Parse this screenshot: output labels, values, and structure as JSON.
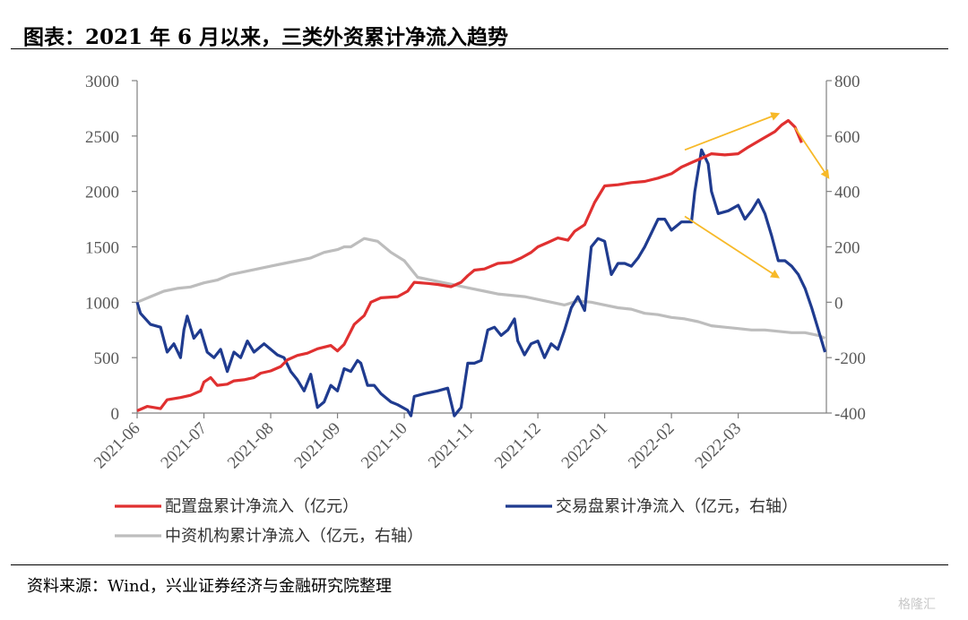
{
  "header": {
    "title": "图表：2021 年 6 月以来，三类外资累计净流入趋势"
  },
  "footer": {
    "source": "资料来源：Wind，兴业证券经济与金融研究院整理",
    "watermark": "格隆汇"
  },
  "colors": {
    "red": "#e03030",
    "blue": "#1f3b8f",
    "gray": "#bdbdbd",
    "arrow": "#f7b928",
    "axis": "#808080"
  },
  "chart_data": {
    "type": "line",
    "title": "2021年6月以来，三类外资累计净流入趋势",
    "x_categories": [
      "2021-06",
      "2021-07",
      "2021-08",
      "2021-09",
      "2021-10",
      "2021-11",
      "2021-12",
      "2022-01",
      "2022-02",
      "2022-03"
    ],
    "x_range": [
      0,
      9.95
    ],
    "y_left": {
      "min": 0,
      "max": 3000,
      "ticks": [
        0,
        500,
        1000,
        1500,
        2000,
        2500,
        3000
      ]
    },
    "y_right": {
      "min": -400,
      "max": 800,
      "ticks": [
        -400,
        -200,
        0,
        200,
        400,
        600,
        800
      ]
    },
    "series": [
      {
        "name": "配置盘累计净流入（亿元）",
        "axis": "left",
        "color": "#e03030",
        "points": [
          [
            0.0,
            20
          ],
          [
            0.15,
            60
          ],
          [
            0.35,
            40
          ],
          [
            0.45,
            120
          ],
          [
            0.65,
            140
          ],
          [
            0.8,
            160
          ],
          [
            0.95,
            200
          ],
          [
            1.0,
            280
          ],
          [
            1.1,
            320
          ],
          [
            1.2,
            250
          ],
          [
            1.35,
            260
          ],
          [
            1.45,
            290
          ],
          [
            1.6,
            300
          ],
          [
            1.75,
            320
          ],
          [
            1.85,
            360
          ],
          [
            2.0,
            380
          ],
          [
            2.15,
            420
          ],
          [
            2.25,
            480
          ],
          [
            2.4,
            520
          ],
          [
            2.55,
            540
          ],
          [
            2.7,
            580
          ],
          [
            2.9,
            610
          ],
          [
            3.0,
            560
          ],
          [
            3.1,
            620
          ],
          [
            3.25,
            800
          ],
          [
            3.4,
            880
          ],
          [
            3.5,
            1000
          ],
          [
            3.65,
            1040
          ],
          [
            3.9,
            1050
          ],
          [
            4.05,
            1100
          ],
          [
            4.15,
            1180
          ],
          [
            4.35,
            1170
          ],
          [
            4.5,
            1160
          ],
          [
            4.7,
            1140
          ],
          [
            4.85,
            1180
          ],
          [
            4.95,
            1240
          ],
          [
            5.05,
            1290
          ],
          [
            5.2,
            1300
          ],
          [
            5.4,
            1350
          ],
          [
            5.6,
            1360
          ],
          [
            5.75,
            1400
          ],
          [
            5.9,
            1450
          ],
          [
            6.0,
            1500
          ],
          [
            6.15,
            1540
          ],
          [
            6.3,
            1580
          ],
          [
            6.45,
            1560
          ],
          [
            6.55,
            1640
          ],
          [
            6.7,
            1700
          ],
          [
            6.85,
            1900
          ],
          [
            7.0,
            2050
          ],
          [
            7.2,
            2060
          ],
          [
            7.4,
            2080
          ],
          [
            7.6,
            2090
          ],
          [
            7.8,
            2120
          ],
          [
            8.0,
            2160
          ],
          [
            8.15,
            2220
          ],
          [
            8.3,
            2260
          ],
          [
            8.45,
            2300
          ],
          [
            8.6,
            2340
          ],
          [
            8.8,
            2330
          ],
          [
            9.0,
            2340
          ],
          [
            9.15,
            2400
          ],
          [
            9.35,
            2470
          ],
          [
            9.55,
            2540
          ],
          [
            9.65,
            2600
          ],
          [
            9.75,
            2640
          ],
          [
            9.85,
            2580
          ],
          [
            9.95,
            2440
          ]
        ]
      },
      {
        "name": "交易盘累计净流入（亿元，右轴）",
        "axis": "right",
        "color": "#1f3b8f",
        "points": [
          [
            0.0,
            0
          ],
          [
            0.05,
            -40
          ],
          [
            0.2,
            -80
          ],
          [
            0.35,
            -90
          ],
          [
            0.45,
            -180
          ],
          [
            0.55,
            -150
          ],
          [
            0.65,
            -200
          ],
          [
            0.7,
            -100
          ],
          [
            0.75,
            -50
          ],
          [
            0.85,
            -130
          ],
          [
            0.95,
            -100
          ],
          [
            1.05,
            -180
          ],
          [
            1.15,
            -200
          ],
          [
            1.25,
            -170
          ],
          [
            1.35,
            -250
          ],
          [
            1.45,
            -180
          ],
          [
            1.55,
            -200
          ],
          [
            1.65,
            -140
          ],
          [
            1.75,
            -180
          ],
          [
            1.9,
            -150
          ],
          [
            2.0,
            -170
          ],
          [
            2.1,
            -190
          ],
          [
            2.2,
            -200
          ],
          [
            2.3,
            -250
          ],
          [
            2.4,
            -280
          ],
          [
            2.5,
            -320
          ],
          [
            2.6,
            -260
          ],
          [
            2.7,
            -380
          ],
          [
            2.8,
            -360
          ],
          [
            2.9,
            -300
          ],
          [
            3.0,
            -320
          ],
          [
            3.1,
            -240
          ],
          [
            3.2,
            -250
          ],
          [
            3.3,
            -210
          ],
          [
            3.35,
            -220
          ],
          [
            3.45,
            -300
          ],
          [
            3.55,
            -300
          ],
          [
            3.65,
            -330
          ],
          [
            3.8,
            -360
          ],
          [
            3.9,
            -370
          ],
          [
            4.05,
            -390
          ],
          [
            4.1,
            -410
          ],
          [
            4.15,
            -340
          ],
          [
            4.3,
            -330
          ],
          [
            4.5,
            -320
          ],
          [
            4.65,
            -310
          ],
          [
            4.75,
            -410
          ],
          [
            4.85,
            -380
          ],
          [
            4.95,
            -220
          ],
          [
            5.05,
            -220
          ],
          [
            5.15,
            -210
          ],
          [
            5.25,
            -100
          ],
          [
            5.35,
            -90
          ],
          [
            5.45,
            -120
          ],
          [
            5.55,
            -100
          ],
          [
            5.65,
            -60
          ],
          [
            5.7,
            -140
          ],
          [
            5.8,
            -190
          ],
          [
            5.9,
            -150
          ],
          [
            6.0,
            -140
          ],
          [
            6.1,
            -200
          ],
          [
            6.2,
            -150
          ],
          [
            6.3,
            -170
          ],
          [
            6.4,
            -100
          ],
          [
            6.5,
            -20
          ],
          [
            6.6,
            20
          ],
          [
            6.7,
            -30
          ],
          [
            6.8,
            200
          ],
          [
            6.9,
            230
          ],
          [
            7.0,
            220
          ],
          [
            7.1,
            100
          ],
          [
            7.2,
            140
          ],
          [
            7.3,
            140
          ],
          [
            7.4,
            130
          ],
          [
            7.5,
            160
          ],
          [
            7.6,
            200
          ],
          [
            7.7,
            250
          ],
          [
            7.8,
            300
          ],
          [
            7.9,
            300
          ],
          [
            8.0,
            260
          ],
          [
            8.15,
            290
          ],
          [
            8.3,
            290
          ],
          [
            8.35,
            400
          ],
          [
            8.45,
            550
          ],
          [
            8.55,
            500
          ],
          [
            8.6,
            400
          ],
          [
            8.7,
            320
          ],
          [
            8.85,
            330
          ],
          [
            9.0,
            350
          ],
          [
            9.1,
            300
          ],
          [
            9.2,
            330
          ],
          [
            9.3,
            370
          ],
          [
            9.4,
            320
          ],
          [
            9.5,
            240
          ],
          [
            9.6,
            150
          ],
          [
            9.7,
            150
          ],
          [
            9.8,
            130
          ],
          [
            9.9,
            100
          ],
          [
            10.0,
            50
          ],
          [
            10.1,
            -20
          ],
          [
            10.2,
            -100
          ],
          [
            10.3,
            -180
          ]
        ]
      },
      {
        "name": "中资机构累计净流入（亿元，右轴）",
        "axis": "right",
        "color": "#bdbdbd",
        "points": [
          [
            0.0,
            0
          ],
          [
            0.2,
            20
          ],
          [
            0.4,
            40
          ],
          [
            0.6,
            50
          ],
          [
            0.8,
            55
          ],
          [
            1.0,
            70
          ],
          [
            1.2,
            80
          ],
          [
            1.4,
            100
          ],
          [
            1.6,
            110
          ],
          [
            1.8,
            120
          ],
          [
            2.0,
            130
          ],
          [
            2.2,
            140
          ],
          [
            2.4,
            150
          ],
          [
            2.6,
            160
          ],
          [
            2.8,
            180
          ],
          [
            3.0,
            190
          ],
          [
            3.1,
            200
          ],
          [
            3.2,
            200
          ],
          [
            3.4,
            230
          ],
          [
            3.6,
            220
          ],
          [
            3.8,
            180
          ],
          [
            4.0,
            150
          ],
          [
            4.2,
            90
          ],
          [
            4.4,
            80
          ],
          [
            4.6,
            70
          ],
          [
            4.8,
            60
          ],
          [
            5.0,
            50
          ],
          [
            5.2,
            40
          ],
          [
            5.4,
            30
          ],
          [
            5.6,
            25
          ],
          [
            5.8,
            20
          ],
          [
            6.0,
            10
          ],
          [
            6.2,
            0
          ],
          [
            6.4,
            -10
          ],
          [
            6.6,
            5
          ],
          [
            6.8,
            0
          ],
          [
            7.0,
            -10
          ],
          [
            7.2,
            -20
          ],
          [
            7.4,
            -25
          ],
          [
            7.6,
            -40
          ],
          [
            7.8,
            -45
          ],
          [
            8.0,
            -55
          ],
          [
            8.2,
            -60
          ],
          [
            8.4,
            -70
          ],
          [
            8.6,
            -85
          ],
          [
            8.8,
            -90
          ],
          [
            9.0,
            -95
          ],
          [
            9.2,
            -100
          ],
          [
            9.4,
            -100
          ],
          [
            9.6,
            -105
          ],
          [
            9.8,
            -110
          ],
          [
            10.0,
            -110
          ],
          [
            10.2,
            -120
          ],
          [
            10.3,
            -130
          ]
        ]
      }
    ],
    "annotations": [
      {
        "type": "arrow",
        "axis": "right",
        "from": [
          8.2,
          550
        ],
        "to": [
          9.6,
          680
        ]
      },
      {
        "type": "arrow",
        "axis": "right",
        "from": [
          9.85,
          630
        ],
        "to": [
          10.35,
          450
        ]
      },
      {
        "type": "arrow",
        "axis": "right",
        "from": [
          8.2,
          310
        ],
        "to": [
          9.6,
          90
        ]
      }
    ],
    "legend": {
      "placement": "bottom"
    }
  }
}
